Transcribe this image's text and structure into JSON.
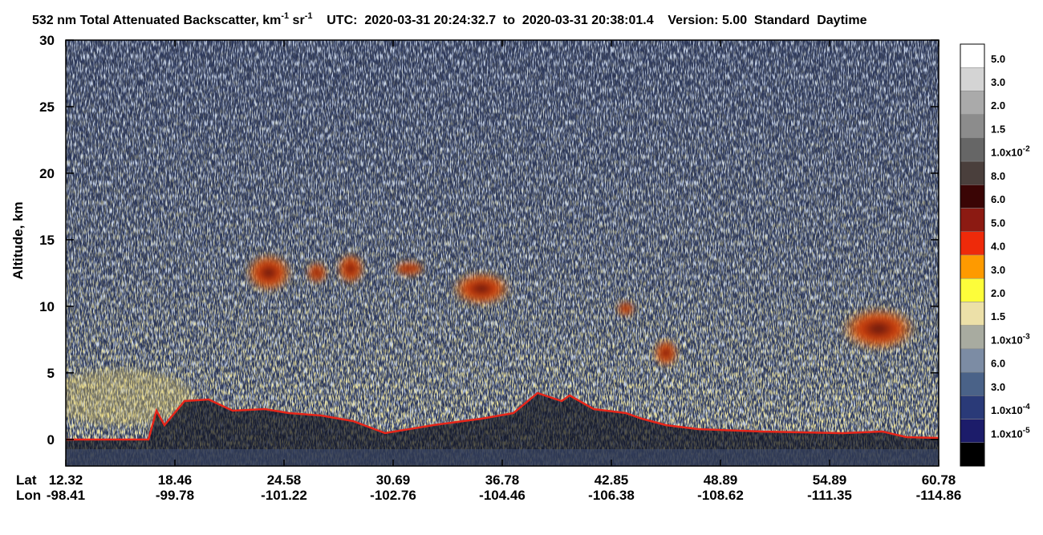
{
  "chart_data": {
    "type": "image",
    "title_parts": [
      "532 nm Total Attenuated Backscatter, km",
      "-1",
      " sr",
      "-1",
      "    UTC:  2020-03-31 20:24:32.7  to  2020-03-31 20:38:01.4    Version: 5.00  Standard  Daytime"
    ],
    "ylabel": "Altitude, km",
    "ylim": [
      -2,
      30
    ],
    "yticks": [
      0,
      5,
      10,
      15,
      20,
      25,
      30
    ],
    "x_rows": [
      {
        "name": "Lat",
        "values": [
          12.32,
          18.46,
          24.58,
          30.69,
          36.78,
          42.85,
          48.89,
          54.89,
          60.78
        ]
      },
      {
        "name": "Lon",
        "values": [
          -98.41,
          -99.78,
          -101.22,
          -102.76,
          -104.46,
          -106.38,
          -108.62,
          -111.35,
          -114.86
        ]
      }
    ],
    "colorbar": [
      {
        "color": "#ffffff",
        "label": "5.0"
      },
      {
        "color": "#d4d4d4",
        "label": "3.0"
      },
      {
        "color": "#aaaaaa",
        "label": "2.0"
      },
      {
        "color": "#8c8c8c",
        "label": "1.5"
      },
      {
        "color": "#666666",
        "label": "1.0x10",
        "exponent": "-2"
      },
      {
        "color": "#4a3f3c",
        "label": "8.0"
      },
      {
        "color": "#3a0505",
        "label": "6.0"
      },
      {
        "color": "#8c1a12",
        "label": "5.0"
      },
      {
        "color": "#ee2a0a",
        "label": "4.0"
      },
      {
        "color": "#fe9a00",
        "label": "3.0"
      },
      {
        "color": "#fdfd3a",
        "label": "2.0"
      },
      {
        "color": "#ece0a8",
        "label": "1.5"
      },
      {
        "color": "#a8aba0",
        "label": "1.0x10",
        "exponent": "-3"
      },
      {
        "color": "#7c8ca4",
        "label": "6.0"
      },
      {
        "color": "#4a6288",
        "label": "3.0"
      },
      {
        "color": "#2a3a78",
        "label": "1.0x10",
        "exponent": "-4"
      },
      {
        "color": "#1c1c6a",
        "label": "1.0x10",
        "exponent": "-5"
      },
      {
        "color": "#000000"
      }
    ]
  }
}
